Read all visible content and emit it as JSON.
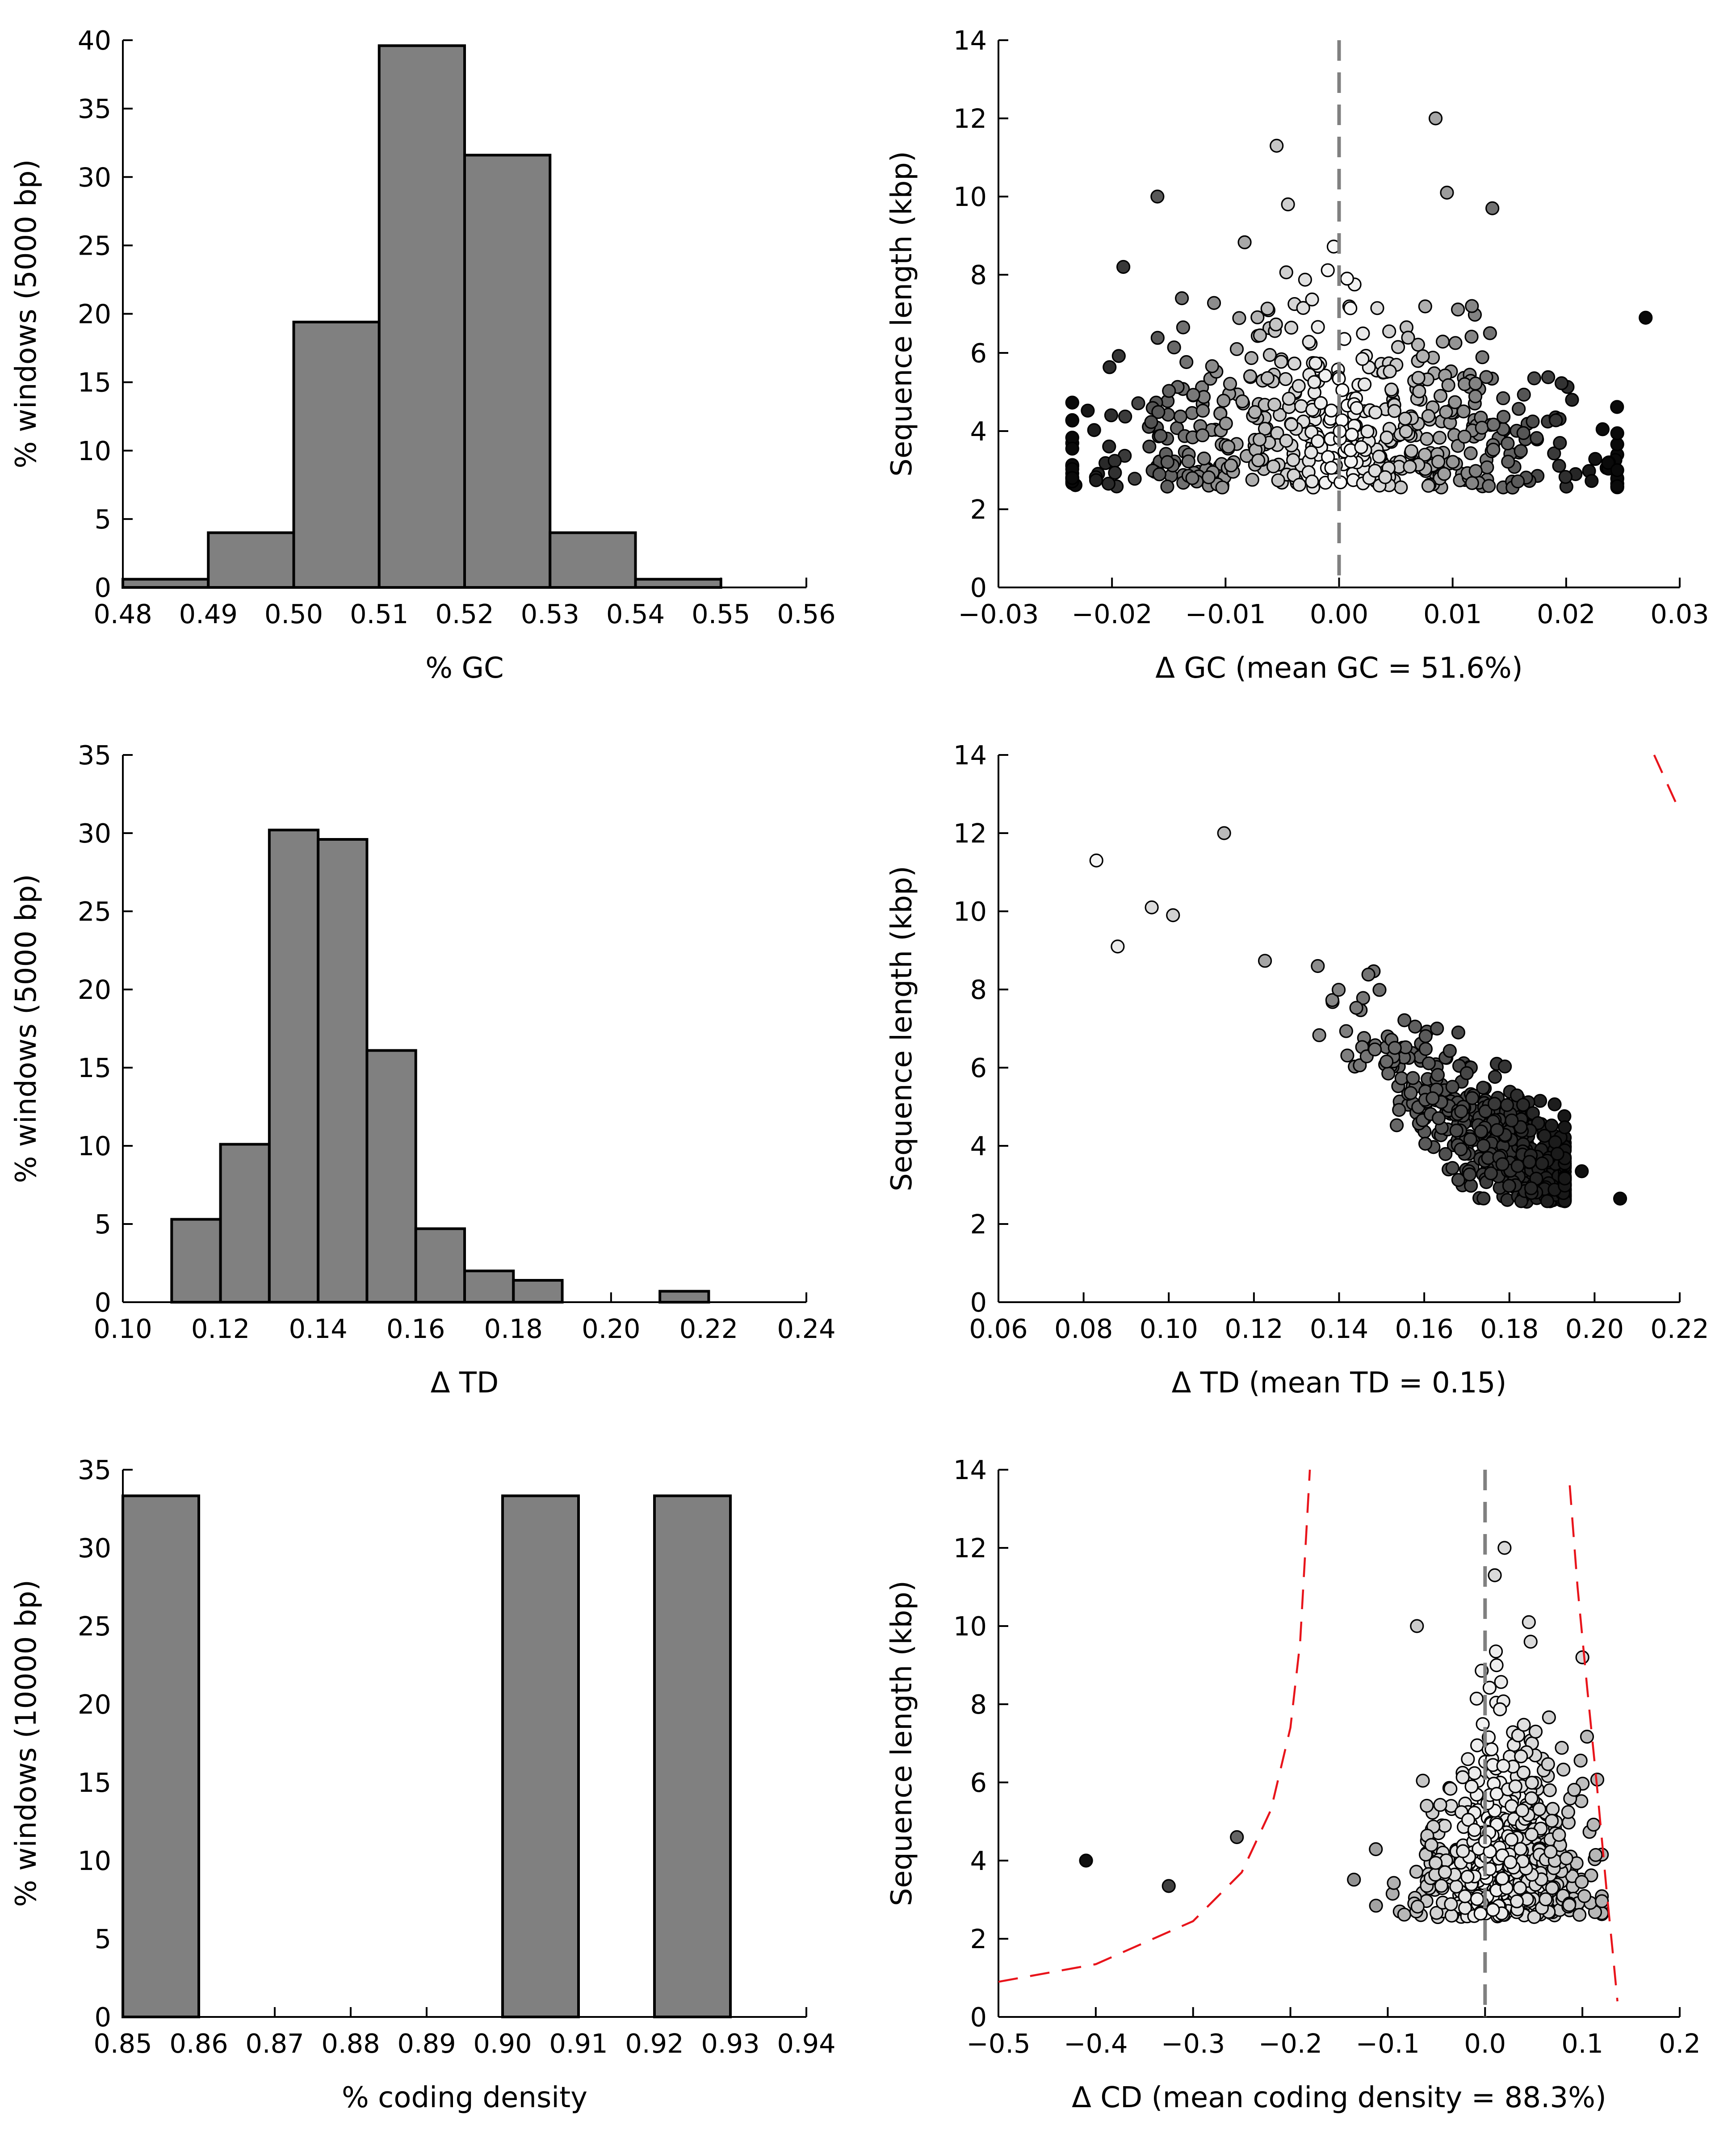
{
  "chart_data": [
    {
      "id": "gc-hist",
      "type": "bar",
      "xlabel": "% GC",
      "ylabel": "% windows (5000 bp)",
      "xlim": [
        0.48,
        0.56
      ],
      "ylim": [
        0,
        40
      ],
      "xticks": [
        "0.48",
        "0.49",
        "0.50",
        "0.51",
        "0.52",
        "0.53",
        "0.54",
        "0.55",
        "0.56"
      ],
      "yticks": [
        "0",
        "5",
        "10",
        "15",
        "20",
        "25",
        "30",
        "35",
        "40"
      ],
      "bins": [
        [
          0.48,
          0.49
        ],
        [
          0.49,
          0.5
        ],
        [
          0.5,
          0.51
        ],
        [
          0.51,
          0.52
        ],
        [
          0.52,
          0.53
        ],
        [
          0.53,
          0.54
        ],
        [
          0.54,
          0.55
        ]
      ],
      "values": [
        0.6,
        4.0,
        19.4,
        39.6,
        31.6,
        4.0,
        0.6
      ]
    },
    {
      "id": "gc-scatter",
      "type": "scatter",
      "xlabel": "Δ GC (mean GC = 51.6%)",
      "ylabel": "Sequence length (kbp)",
      "xlim": [
        -0.03,
        0.03
      ],
      "ylim": [
        0,
        14
      ],
      "xticks": [
        "−0.03",
        "−0.02",
        "−0.01",
        "0.00",
        "0.01",
        "0.02",
        "0.03"
      ],
      "yticks": [
        "0",
        "2",
        "4",
        "6",
        "8",
        "10",
        "12",
        "14"
      ],
      "zero_line": true,
      "points_shown": "about 600 windows, shaded white near Δ = 0 through grey to black at large |Δ|",
      "outliers": [
        [
          -0.0055,
          11.3
        ],
        [
          0.0085,
          12.0
        ],
        [
          -0.016,
          10.0
        ],
        [
          0.0095,
          10.1
        ],
        [
          -0.0045,
          9.8
        ],
        [
          0.027,
          6.9
        ],
        [
          -0.019,
          8.2
        ],
        [
          0.0135,
          9.7
        ],
        [
          0.0245,
          3.0
        ],
        [
          -0.0235,
          2.8
        ]
      ]
    },
    {
      "id": "td-hist",
      "type": "bar",
      "xlabel": "Δ TD",
      "ylabel": "% windows (5000 bp)",
      "xlim": [
        0.1,
        0.24
      ],
      "ylim": [
        0,
        35
      ],
      "xticks": [
        "0.10",
        "0.12",
        "0.14",
        "0.16",
        "0.18",
        "0.20",
        "0.22",
        "0.24"
      ],
      "yticks": [
        "0",
        "5",
        "10",
        "15",
        "20",
        "25",
        "30",
        "35"
      ],
      "bins": [
        [
          0.11,
          0.12
        ],
        [
          0.12,
          0.13
        ],
        [
          0.13,
          0.14
        ],
        [
          0.14,
          0.15
        ],
        [
          0.15,
          0.16
        ],
        [
          0.16,
          0.17
        ],
        [
          0.17,
          0.18
        ],
        [
          0.18,
          0.19
        ],
        [
          0.21,
          0.22
        ]
      ],
      "values": [
        5.3,
        10.1,
        30.2,
        29.6,
        16.1,
        4.7,
        2.0,
        1.4,
        0.7
      ]
    },
    {
      "id": "td-scatter",
      "type": "scatter",
      "xlabel": "Δ TD (mean TD = 0.15)",
      "ylabel": "Sequence length (kbp)",
      "xlim": [
        0.06,
        0.22
      ],
      "ylim": [
        0,
        14
      ],
      "xticks": [
        "0.06",
        "0.08",
        "0.10",
        "0.12",
        "0.14",
        "0.16",
        "0.18",
        "0.20",
        "0.22"
      ],
      "yticks": [
        "0",
        "2",
        "4",
        "6",
        "8",
        "10",
        "12",
        "14"
      ],
      "points_shown": "about 600 windows, TD falling from ~0.09 at 11 kbp to ~0.19 at 2.7 kbp",
      "outliers": [
        [
          0.083,
          11.3
        ],
        [
          0.113,
          12.0
        ],
        [
          0.096,
          10.1
        ],
        [
          0.101,
          9.9
        ],
        [
          0.088,
          9.1
        ],
        [
          0.206,
          2.65
        ],
        [
          0.197,
          3.35
        ],
        [
          0.168,
          6.9
        ],
        [
          0.163,
          7.0
        ],
        [
          0.135,
          8.6
        ]
      ],
      "confidence_bound": [
        [
          0.214,
          14.0
        ],
        [
          0.2165,
          13.4
        ],
        [
          0.219,
          12.8
        ]
      ]
    },
    {
      "id": "cd-hist",
      "type": "bar",
      "xlabel": "% coding density",
      "ylabel": "% windows (10000 bp)",
      "xlim": [
        0.85,
        0.94
      ],
      "ylim": [
        0,
        35
      ],
      "xticks": [
        "0.85",
        "0.86",
        "0.87",
        "0.88",
        "0.89",
        "0.90",
        "0.91",
        "0.92",
        "0.93",
        "0.94"
      ],
      "yticks": [
        "0",
        "5",
        "10",
        "15",
        "20",
        "25",
        "30",
        "35"
      ],
      "bins": [
        [
          0.85,
          0.86
        ],
        [
          0.9,
          0.91
        ],
        [
          0.92,
          0.93
        ]
      ],
      "values": [
        33.33,
        33.33,
        33.33
      ]
    },
    {
      "id": "cd-scatter",
      "type": "scatter",
      "xlabel": "Δ CD (mean coding density = 88.3%)",
      "ylabel": "Sequence length (kbp)",
      "xlim": [
        -0.5,
        0.2
      ],
      "ylim": [
        0,
        14
      ],
      "xticks": [
        "−0.5",
        "−0.4",
        "−0.3",
        "−0.2",
        "−0.1",
        "0.0",
        "0.1",
        "0.2"
      ],
      "yticks": [
        "0",
        "2",
        "4",
        "6",
        "8",
        "10",
        "12",
        "14"
      ],
      "zero_line": true,
      "points_shown": "about 600 windows, mostly between −0.1 and +0.12, white near 0 and grey further out",
      "outliers": [
        [
          -0.41,
          4.0
        ],
        [
          -0.325,
          3.35
        ],
        [
          -0.255,
          4.6
        ],
        [
          0.01,
          11.3
        ],
        [
          0.02,
          12.0
        ],
        [
          -0.07,
          10.0
        ],
        [
          0.045,
          10.1
        ],
        [
          0.1,
          9.2
        ]
      ],
      "confidence_bound_left": [
        [
          -0.5,
          0.9
        ],
        [
          -0.4,
          1.35
        ],
        [
          -0.3,
          2.45
        ],
        [
          -0.25,
          3.7
        ],
        [
          -0.22,
          5.3
        ],
        [
          -0.2,
          7.4
        ],
        [
          -0.19,
          9.6
        ],
        [
          -0.18,
          14.0
        ]
      ],
      "confidence_bound_right": [
        [
          0.087,
          13.6
        ],
        [
          0.095,
          11.0
        ],
        [
          0.105,
          8.4
        ],
        [
          0.115,
          5.9
        ],
        [
          0.125,
          3.2
        ],
        [
          0.131,
          1.7
        ],
        [
          0.136,
          0.4
        ]
      ]
    }
  ]
}
